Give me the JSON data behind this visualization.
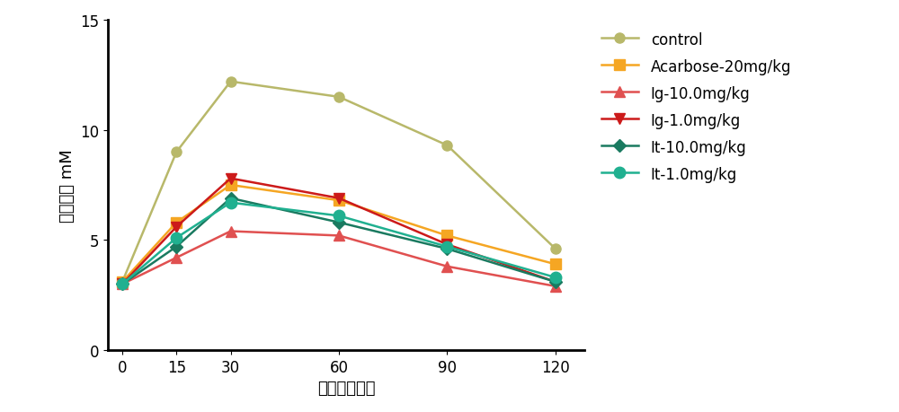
{
  "x": [
    0,
    15,
    30,
    60,
    90,
    120
  ],
  "series": [
    {
      "label": "control",
      "color": "#b8b86a",
      "marker": "o",
      "markersize": 8,
      "linestyle": "-",
      "linewidth": 1.8,
      "values": [
        3.1,
        9.0,
        12.2,
        11.5,
        9.3,
        4.6
      ]
    },
    {
      "label": "Acarbose-20mg/kg",
      "color": "#f5a623",
      "marker": "s",
      "markersize": 8,
      "linestyle": "-",
      "linewidth": 1.8,
      "values": [
        3.1,
        5.8,
        7.5,
        6.8,
        5.2,
        3.9
      ]
    },
    {
      "label": "Ig-10.0mg/kg",
      "color": "#e05050",
      "marker": "^",
      "markersize": 9,
      "linestyle": "-",
      "linewidth": 1.8,
      "values": [
        3.0,
        4.2,
        5.4,
        5.2,
        3.8,
        2.9
      ]
    },
    {
      "label": "Ig-1.0mg/kg",
      "color": "#cc1a1a",
      "marker": "v",
      "markersize": 9,
      "linestyle": "-",
      "linewidth": 1.8,
      "values": [
        3.0,
        5.6,
        7.8,
        6.9,
        4.8,
        3.1
      ]
    },
    {
      "label": "It-10.0mg/kg",
      "color": "#1a7a60",
      "marker": "D",
      "markersize": 7,
      "linestyle": "-",
      "linewidth": 1.8,
      "values": [
        3.0,
        4.7,
        6.9,
        5.8,
        4.6,
        3.1
      ]
    },
    {
      "label": "It-1.0mg/kg",
      "color": "#20b090",
      "marker": "o",
      "markersize": 9,
      "linestyle": "-",
      "linewidth": 1.8,
      "values": [
        3.0,
        5.1,
        6.7,
        6.1,
        4.7,
        3.3
      ]
    }
  ],
  "xlabel": "时间（分钟）",
  "ylabel": "血糖浓度 mM",
  "ylim": [
    0,
    15
  ],
  "yticks": [
    0,
    5,
    10,
    15
  ],
  "xticks": [
    0,
    15,
    30,
    60,
    90,
    120
  ],
  "background_color": "#ffffff",
  "font_size_label": 13,
  "font_size_tick": 12,
  "font_size_legend": 12
}
